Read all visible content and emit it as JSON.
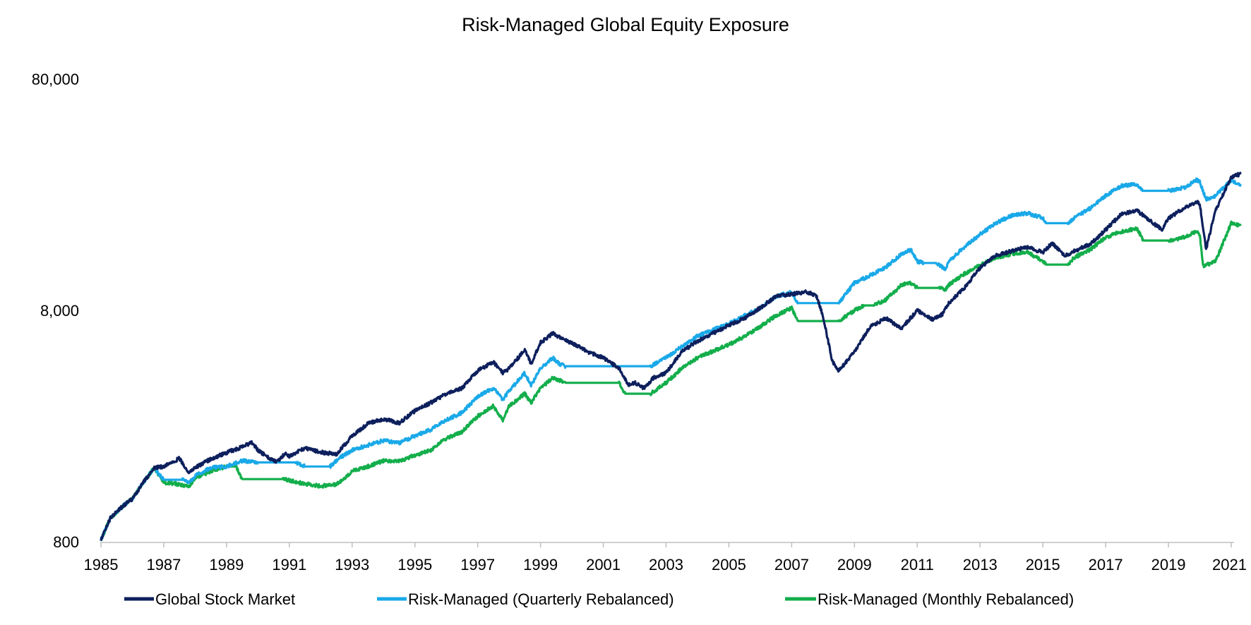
{
  "chart_data": {
    "type": "line",
    "title": "Risk-Managed Global Equity Exposure",
    "xlabel": "",
    "ylabel": "",
    "y_scale": "log",
    "ylim": [
      800,
      80000
    ],
    "xlim": [
      1985,
      2021
    ],
    "y_ticks": [
      800,
      8000,
      80000
    ],
    "y_tick_labels": [
      "800",
      "8,000",
      "80,000"
    ],
    "x_ticks": [
      1985,
      1987,
      1989,
      1991,
      1993,
      1995,
      1997,
      1999,
      2001,
      2003,
      2005,
      2007,
      2009,
      2011,
      2013,
      2015,
      2017,
      2019,
      2021
    ],
    "x_tick_labels": [
      "1985",
      "1987",
      "1989",
      "1991",
      "1993",
      "1995",
      "1997",
      "1999",
      "2001",
      "2003",
      "2005",
      "2007",
      "2009",
      "2011",
      "2013",
      "2015",
      "2017",
      "2019",
      "2021"
    ],
    "legend_position": "bottom",
    "series": [
      {
        "name": "Global Stock Market",
        "color": "#0D1F5C",
        "points": [
          [
            1985,
            820
          ],
          [
            1985.3,
            1020
          ],
          [
            1985.7,
            1150
          ],
          [
            1986,
            1230
          ],
          [
            1986.3,
            1420
          ],
          [
            1986.7,
            1680
          ],
          [
            1987,
            1700
          ],
          [
            1987.2,
            1760
          ],
          [
            1987.5,
            1840
          ],
          [
            1987.8,
            1600
          ],
          [
            1988,
            1680
          ],
          [
            1988.5,
            1830
          ],
          [
            1989,
            1950
          ],
          [
            1989.4,
            2040
          ],
          [
            1989.8,
            2150
          ],
          [
            1990,
            2000
          ],
          [
            1990.3,
            1870
          ],
          [
            1990.6,
            1780
          ],
          [
            1990.9,
            1950
          ],
          [
            1991,
            1880
          ],
          [
            1991.5,
            2040
          ],
          [
            1992,
            1960
          ],
          [
            1992.5,
            1920
          ],
          [
            1993,
            2300
          ],
          [
            1993.5,
            2600
          ],
          [
            1994,
            2720
          ],
          [
            1994.5,
            2620
          ],
          [
            1995,
            2950
          ],
          [
            1995.5,
            3200
          ],
          [
            1996,
            3500
          ],
          [
            1996.5,
            3700
          ],
          [
            1997,
            4400
          ],
          [
            1997.5,
            4800
          ],
          [
            1997.8,
            4300
          ],
          [
            1998,
            4500
          ],
          [
            1998.5,
            5400
          ],
          [
            1998.7,
            4700
          ],
          [
            1999,
            5800
          ],
          [
            1999.4,
            6400
          ],
          [
            1999.7,
            6000
          ],
          [
            2000,
            5800
          ],
          [
            2000.5,
            5300
          ],
          [
            2001,
            5000
          ],
          [
            2001.5,
            4500
          ],
          [
            2001.8,
            3800
          ],
          [
            2002,
            3900
          ],
          [
            2002.3,
            3700
          ],
          [
            2002.6,
            4100
          ],
          [
            2003,
            4300
          ],
          [
            2003.5,
            5300
          ],
          [
            2004,
            5900
          ],
          [
            2005,
            6900
          ],
          [
            2005.5,
            7400
          ],
          [
            2006,
            8200
          ],
          [
            2006.5,
            9200
          ],
          [
            2007,
            9400
          ],
          [
            2007.5,
            9600
          ],
          [
            2007.8,
            9200
          ],
          [
            2008,
            7500
          ],
          [
            2008.3,
            4800
          ],
          [
            2008.5,
            4400
          ],
          [
            2009,
            5300
          ],
          [
            2009.5,
            6800
          ],
          [
            2010,
            7400
          ],
          [
            2010.5,
            6700
          ],
          [
            2011,
            8000
          ],
          [
            2011.5,
            7300
          ],
          [
            2011.8,
            7700
          ],
          [
            2012,
            8600
          ],
          [
            2012.5,
            10000
          ],
          [
            2013,
            12200
          ],
          [
            2013.5,
            13800
          ],
          [
            2014,
            14400
          ],
          [
            2014.5,
            15000
          ],
          [
            2015,
            14200
          ],
          [
            2015.3,
            15600
          ],
          [
            2015.7,
            13700
          ],
          [
            2016,
            14400
          ],
          [
            2016.5,
            15400
          ],
          [
            2017,
            17800
          ],
          [
            2017.5,
            20800
          ],
          [
            2018,
            21500
          ],
          [
            2018.3,
            20000
          ],
          [
            2018.8,
            17800
          ],
          [
            2019,
            20000
          ],
          [
            2019.5,
            22000
          ],
          [
            2019.9,
            23400
          ],
          [
            2020,
            23000
          ],
          [
            2020.2,
            14700
          ],
          [
            2020.5,
            21500
          ],
          [
            2021,
            30000
          ],
          [
            2021.3,
            31000
          ]
        ]
      },
      {
        "name": "Risk-Managed (Quarterly Rebalanced)",
        "color": "#1AA9E8",
        "points": [
          [
            1985,
            820
          ],
          [
            1985.3,
            1020
          ],
          [
            1985.7,
            1150
          ],
          [
            1986,
            1230
          ],
          [
            1986.3,
            1420
          ],
          [
            1986.7,
            1680
          ],
          [
            1987,
            1490
          ],
          [
            1987.6,
            1490
          ],
          [
            1987.8,
            1450
          ],
          [
            1988,
            1550
          ],
          [
            1988.5,
            1680
          ],
          [
            1989,
            1700
          ],
          [
            1989.5,
            1800
          ],
          [
            1989.8,
            1780
          ],
          [
            1990,
            1770
          ],
          [
            1991.2,
            1770
          ],
          [
            1991.5,
            1700
          ],
          [
            1992.3,
            1700
          ],
          [
            1992.6,
            1850
          ],
          [
            1993,
            2000
          ],
          [
            1993.5,
            2100
          ],
          [
            1994,
            2200
          ],
          [
            1994.5,
            2150
          ],
          [
            1995,
            2300
          ],
          [
            1995.5,
            2450
          ],
          [
            1996,
            2700
          ],
          [
            1996.5,
            2900
          ],
          [
            1997,
            3400
          ],
          [
            1997.5,
            3700
          ],
          [
            1997.8,
            3300
          ],
          [
            1998,
            3600
          ],
          [
            1998.5,
            4300
          ],
          [
            1998.7,
            3800
          ],
          [
            1999,
            4500
          ],
          [
            1999.4,
            5000
          ],
          [
            1999.6,
            4700
          ],
          [
            1999.8,
            4600
          ],
          [
            2002.5,
            4600
          ],
          [
            2003,
            5000
          ],
          [
            2003.5,
            5600
          ],
          [
            2004,
            6200
          ],
          [
            2005,
            7000
          ],
          [
            2005.5,
            7600
          ],
          [
            2006,
            8200
          ],
          [
            2006.5,
            9200
          ],
          [
            2007,
            9600
          ],
          [
            2007.2,
            8600
          ],
          [
            2008.5,
            8600
          ],
          [
            2009,
            10500
          ],
          [
            2009.3,
            11000
          ],
          [
            2009.6,
            11500
          ],
          [
            2010,
            12300
          ],
          [
            2010.5,
            14000
          ],
          [
            2010.8,
            14600
          ],
          [
            2011,
            13000
          ],
          [
            2011.2,
            12800
          ],
          [
            2011.6,
            12800
          ],
          [
            2011.9,
            12000
          ],
          [
            2012,
            13000
          ],
          [
            2012.5,
            15000
          ],
          [
            2013,
            17000
          ],
          [
            2013.5,
            19000
          ],
          [
            2014,
            20500
          ],
          [
            2014.5,
            21000
          ],
          [
            2015,
            20000
          ],
          [
            2015.1,
            19000
          ],
          [
            2015.8,
            19000
          ],
          [
            2016,
            20000
          ],
          [
            2016.5,
            22000
          ],
          [
            2017,
            25000
          ],
          [
            2017.5,
            27500
          ],
          [
            2018,
            28000
          ],
          [
            2018.2,
            26200
          ],
          [
            2019,
            26200
          ],
          [
            2019.5,
            27000
          ],
          [
            2019.9,
            29200
          ],
          [
            2020,
            28500
          ],
          [
            2020.2,
            24000
          ],
          [
            2020.5,
            25000
          ],
          [
            2021,
            29000
          ],
          [
            2021.3,
            28000
          ]
        ]
      },
      {
        "name": "Risk-Managed (Monthly Rebalanced)",
        "color": "#13AE4B",
        "points": [
          [
            1985,
            820
          ],
          [
            1985.3,
            1020
          ],
          [
            1985.7,
            1150
          ],
          [
            1986,
            1230
          ],
          [
            1986.3,
            1420
          ],
          [
            1986.7,
            1680
          ],
          [
            1987,
            1450
          ],
          [
            1987.4,
            1430
          ],
          [
            1987.8,
            1390
          ],
          [
            1988,
            1520
          ],
          [
            1988.5,
            1620
          ],
          [
            1989,
            1700
          ],
          [
            1989.3,
            1700
          ],
          [
            1989.5,
            1500
          ],
          [
            1990.8,
            1500
          ],
          [
            1991,
            1480
          ],
          [
            1991.5,
            1430
          ],
          [
            1992,
            1400
          ],
          [
            1992.5,
            1420
          ],
          [
            1993,
            1620
          ],
          [
            1993.5,
            1700
          ],
          [
            1994,
            1800
          ],
          [
            1994.5,
            1790
          ],
          [
            1995,
            1900
          ],
          [
            1995.5,
            2000
          ],
          [
            1996,
            2250
          ],
          [
            1996.5,
            2400
          ],
          [
            1997,
            2800
          ],
          [
            1997.5,
            3100
          ],
          [
            1997.8,
            2700
          ],
          [
            1998,
            3100
          ],
          [
            1998.5,
            3500
          ],
          [
            1998.7,
            3200
          ],
          [
            1999,
            3700
          ],
          [
            1999.4,
            4100
          ],
          [
            1999.6,
            4000
          ],
          [
            1999.8,
            3900
          ],
          [
            2001.5,
            3900
          ],
          [
            2001.7,
            3500
          ],
          [
            2002.5,
            3500
          ],
          [
            2003,
            3900
          ],
          [
            2003.5,
            4500
          ],
          [
            2004,
            5000
          ],
          [
            2005,
            5700
          ],
          [
            2005.5,
            6200
          ],
          [
            2006,
            6800
          ],
          [
            2006.5,
            7600
          ],
          [
            2007,
            8200
          ],
          [
            2007.2,
            7200
          ],
          [
            2008.5,
            7200
          ],
          [
            2009,
            8000
          ],
          [
            2009.3,
            8400
          ],
          [
            2009.6,
            8400
          ],
          [
            2010,
            8900
          ],
          [
            2010.5,
            10300
          ],
          [
            2010.8,
            10500
          ],
          [
            2011,
            10000
          ],
          [
            2011.7,
            10000
          ],
          [
            2011.9,
            9800
          ],
          [
            2012,
            10300
          ],
          [
            2012.5,
            11500
          ],
          [
            2013,
            12500
          ],
          [
            2013.5,
            13500
          ],
          [
            2014,
            14000
          ],
          [
            2014.5,
            14300
          ],
          [
            2015,
            13000
          ],
          [
            2015.1,
            12600
          ],
          [
            2015.8,
            12600
          ],
          [
            2016,
            13500
          ],
          [
            2016.5,
            14600
          ],
          [
            2017,
            16500
          ],
          [
            2017.5,
            17500
          ],
          [
            2018,
            18000
          ],
          [
            2018.2,
            16000
          ],
          [
            2019,
            16000
          ],
          [
            2019.5,
            16500
          ],
          [
            2019.9,
            17500
          ],
          [
            2020,
            17000
          ],
          [
            2020.1,
            12400
          ],
          [
            2020.5,
            13000
          ],
          [
            2021,
            19000
          ],
          [
            2021.3,
            18500
          ]
        ]
      }
    ]
  }
}
